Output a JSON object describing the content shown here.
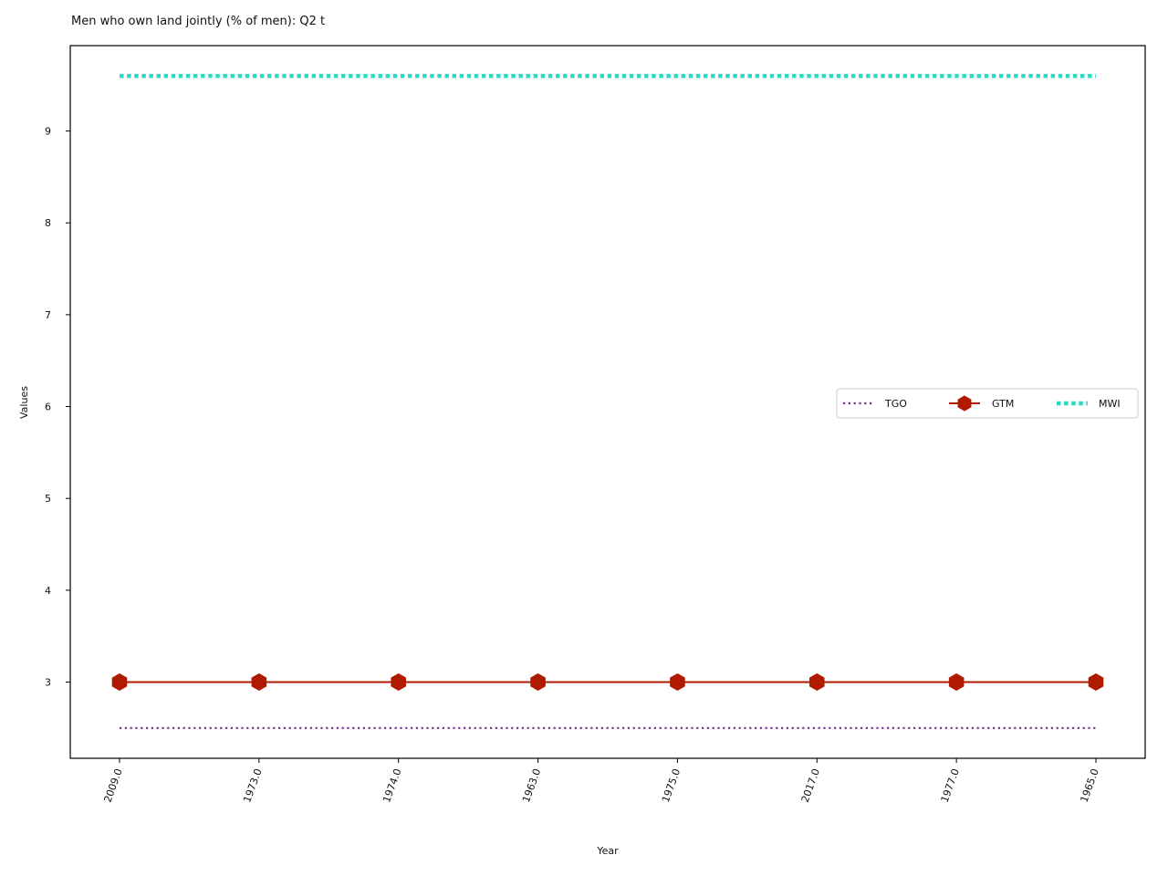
{
  "chart_data": {
    "type": "line",
    "title": "Men who own land jointly (% of men): Q2 t",
    "xlabel": "Year",
    "ylabel": "Values",
    "categories": [
      "2009.0",
      "1973.0",
      "1974.0",
      "1963.0",
      "1975.0",
      "2017.0",
      "1977.0",
      "1965.0"
    ],
    "yticks": [
      3,
      4,
      5,
      6,
      7,
      8,
      9
    ],
    "ylim": [
      2.17,
      9.93
    ],
    "grid": false,
    "legend_position": "center-right",
    "series": [
      {
        "name": "TGO",
        "values": [
          2.5,
          2.5,
          2.5,
          2.5,
          2.5,
          2.5,
          2.5,
          2.5
        ],
        "color": "#7b2d8e",
        "style": "dotted",
        "marker": "none"
      },
      {
        "name": "GTM",
        "values": [
          3.0,
          3.0,
          3.0,
          3.0,
          3.0,
          3.0,
          3.0,
          3.0
        ],
        "color": "#b01a00",
        "style": "solid",
        "marker": "hexagon"
      },
      {
        "name": "MWI",
        "values": [
          9.6,
          9.6,
          9.6,
          9.6,
          9.6,
          9.6,
          9.6,
          9.6
        ],
        "color": "#2ed8c3",
        "style": "dotted-thick",
        "marker": "none"
      }
    ]
  }
}
